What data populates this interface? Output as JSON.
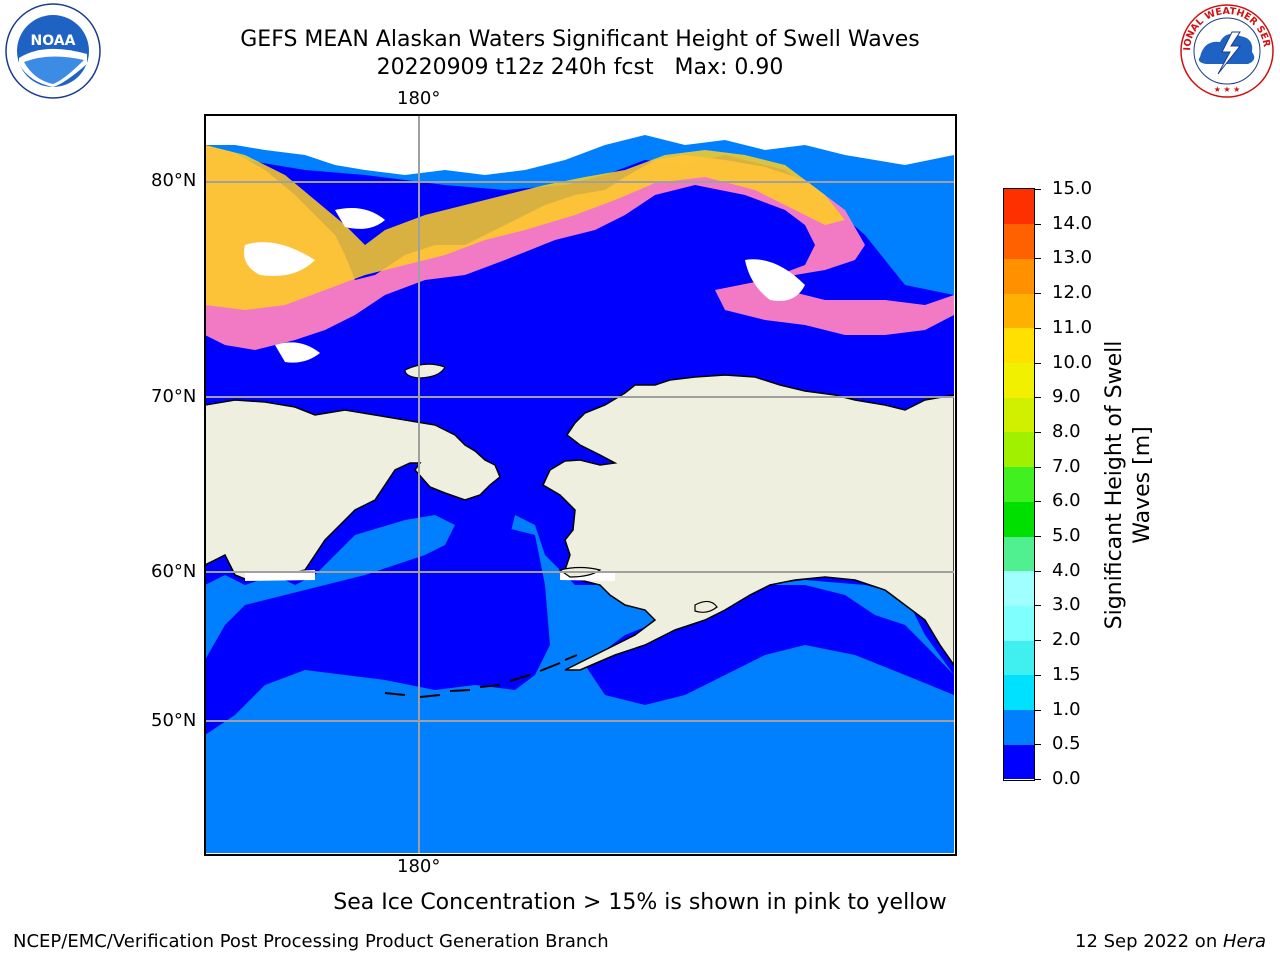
{
  "title": {
    "line1": "GEFS MEAN Alaskan Waters Significant Height of Swell Waves",
    "line2": "20220909 t12z 240h fcst   Max: 0.90"
  },
  "map": {
    "top_longitude_label": "180°",
    "bottom_longitude_label": "180°",
    "latitude_labels": [
      "80°N",
      "70°N",
      "60°N",
      "50°N"
    ],
    "colors": {
      "ocean_0_0_5": "#0000ff",
      "ocean_0_5_1_0": "#0080ff",
      "land": "#efefdf",
      "ice_low": "#ff40ff",
      "ice_mid": "#ff80c0",
      "ice_high": "#ffd020",
      "gridline": "#a0a0a0"
    }
  },
  "colorbar": {
    "label": "Significant Height of Swell Waves [m]",
    "ticks": [
      "0.0",
      "0.5",
      "1.0",
      "1.5",
      "2.0",
      "3.0",
      "4.0",
      "5.0",
      "6.0",
      "7.0",
      "8.0",
      "9.0",
      "10.0",
      "11.0",
      "12.0",
      "13.0",
      "14.0",
      "15.0"
    ],
    "segment_colors": [
      "#0000ff",
      "#0080ff",
      "#00e0ff",
      "#40f0f0",
      "#80ffff",
      "#a0ffff",
      "#50f090",
      "#00e000",
      "#40f020",
      "#a0f000",
      "#d0f000",
      "#f0f000",
      "#ffe000",
      "#ffb000",
      "#ff9000",
      "#ff6000",
      "#ff3000",
      "#ff0000"
    ]
  },
  "note": "Sea Ice Concentration > 15% is shown in pink to yellow",
  "footer": {
    "left": "NCEP/EMC/Verification Post Processing Product Generation Branch",
    "right_prefix": "12 Sep 2022 on ",
    "right_host": "Hera"
  },
  "logos": {
    "noaa": "NOAA",
    "nws": "NATIONAL WEATHER SERVICE"
  }
}
